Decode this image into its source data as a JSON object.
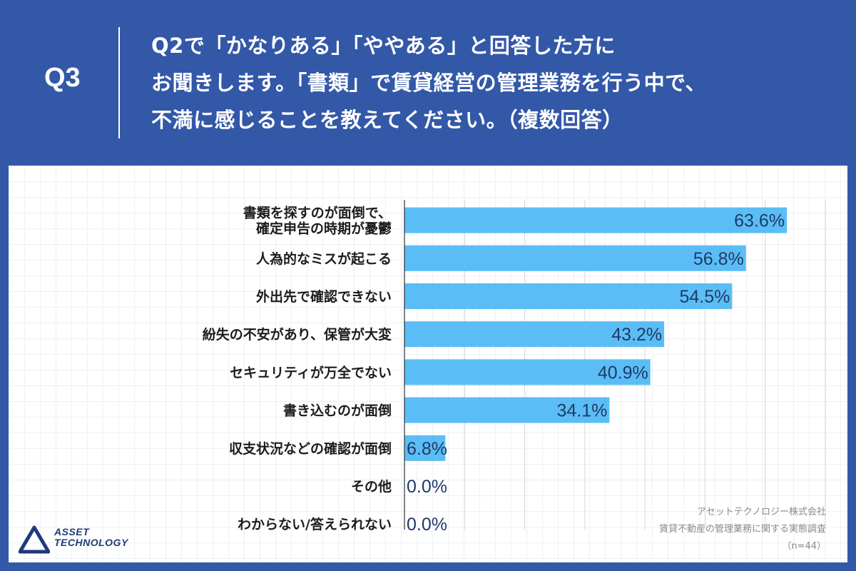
{
  "header": {
    "q_label": "Q3",
    "question_lines": [
      "Q2で「かなりある」「ややある」と回答した方に",
      "お聞きします。「書類」で賃貸経営の管理業務を行う中で、",
      "不満に感じることを教えてください。（複数回答）"
    ]
  },
  "colors": {
    "background": "#3358a8",
    "bar": "#5bbdf5",
    "value_text": "#1f3a66"
  },
  "chart_data": {
    "type": "bar",
    "orientation": "horizontal",
    "categories": [
      [
        "書類を探すのが面倒で、",
        "確定申告の時期が憂鬱"
      ],
      [
        "人為的なミスが起こる"
      ],
      [
        "外出先で確認できない"
      ],
      [
        "紛失の不安があり、保管が大変"
      ],
      [
        "セキュリティが万全でない"
      ],
      [
        "書き込むのが面倒"
      ],
      [
        "収支状況などの確認が面倒"
      ],
      [
        "その他"
      ],
      [
        "わからない/答えられない"
      ]
    ],
    "values": [
      63.6,
      56.8,
      54.5,
      43.2,
      40.9,
      34.1,
      6.8,
      0.0,
      0.0
    ],
    "value_labels": [
      "63.6%",
      "56.8%",
      "54.5%",
      "43.2%",
      "40.9%",
      "34.1%",
      "6.8%",
      "0.0%",
      "0.0%"
    ],
    "xlim": [
      0,
      70
    ],
    "grid_step": 10,
    "grid": true,
    "legend": false
  },
  "credit": {
    "company": "アセットテクノロジー株式会社",
    "survey": "賃貸不動産の管理業務に関する実態調査",
    "sample": "（n=44）"
  },
  "logo": {
    "line1": "ASSET",
    "line2": "TECHNOLOGY"
  }
}
